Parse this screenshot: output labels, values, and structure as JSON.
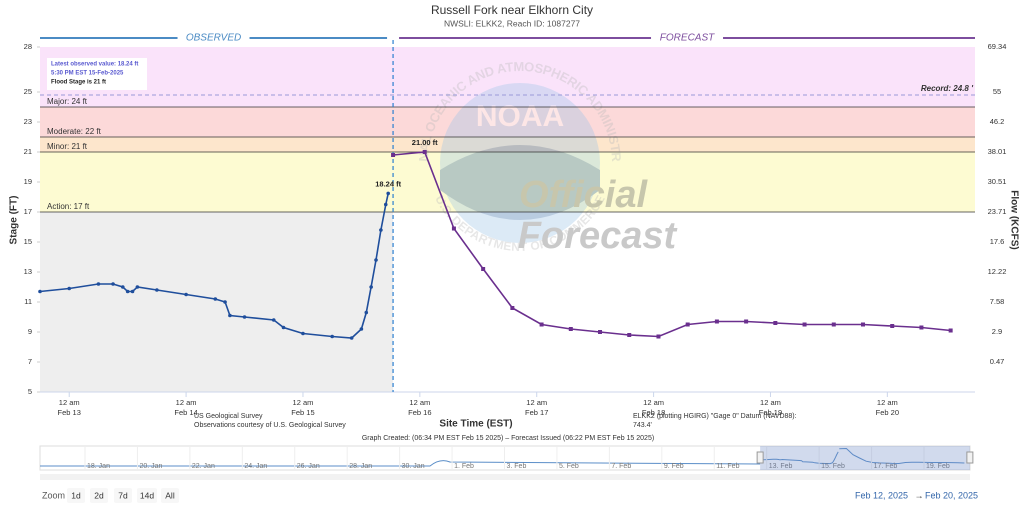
{
  "chart_data": {
    "type": "line",
    "title": "Russell Fork near Elkhorn City",
    "subtitle": "NWSLI: ELKK2, Reach ID: 1087277",
    "x_label": "Site Time (EST)",
    "y_label": "Stage (FT)",
    "y2_label": "Flow (KCFS)",
    "xlim": [
      "2025-02-12 18:00",
      "2025-02-20 18:00"
    ],
    "xticks": [
      {
        "value": "2025-02-13 00:00",
        "label": "12 am"
      },
      {
        "value": "2025-02-14 00:00",
        "label": "12 am"
      },
      {
        "value": "2025-02-15 00:00",
        "label": "12 am"
      },
      {
        "value": "2025-02-16 00:00",
        "label": "12 am"
      },
      {
        "value": "2025-02-17 00:00",
        "label": "12 am"
      },
      {
        "value": "2025-02-18 00:00",
        "label": "12 am"
      },
      {
        "value": "2025-02-19 00:00",
        "label": "12 am"
      },
      {
        "value": "2025-02-20 00:00",
        "label": "12 am"
      }
    ],
    "xtick_dates": [
      "Feb 13",
      "Feb 14",
      "Feb 15",
      "Feb 16",
      "Feb 17",
      "Feb 18",
      "Feb 19",
      "Feb 20"
    ],
    "ylim": [
      5,
      28
    ],
    "yticks": [
      5,
      7,
      9,
      11,
      13,
      15,
      17,
      19,
      21,
      23,
      25,
      28
    ],
    "y2ticks": [
      null,
      0.47,
      2.9,
      7.58,
      12.22,
      17.6,
      23.71,
      30.51,
      38.01,
      46.2,
      55,
      69.34
    ],
    "flood_categories": [
      {
        "label": "Action: 17 ft",
        "value": 17,
        "color": "#fdfbd2"
      },
      {
        "label": "Minor: 21 ft",
        "value": 21,
        "color": "#fde6cc"
      },
      {
        "label": "Moderate: 22 ft",
        "value": 22,
        "color": "#fcd9d9"
      },
      {
        "label": "Major: 24 ft",
        "value": 24,
        "color": "#fae3fa"
      }
    ],
    "record": {
      "label": "Record: 24.8 '",
      "value": 24.8
    },
    "series": [
      {
        "name": "OBSERVED",
        "color": "#1f4e9c",
        "x": [
          "2025-02-12 18:00",
          "2025-02-13 00:00",
          "2025-02-13 06:00",
          "2025-02-13 09:00",
          "2025-02-13 11:00",
          "2025-02-13 12:00",
          "2025-02-13 13:00",
          "2025-02-13 14:00",
          "2025-02-13 18:00",
          "2025-02-14 00:00",
          "2025-02-14 06:00",
          "2025-02-14 08:00",
          "2025-02-14 09:00",
          "2025-02-14 12:00",
          "2025-02-14 18:00",
          "2025-02-14 20:00",
          "2025-02-15 00:00",
          "2025-02-15 06:00",
          "2025-02-15 10:00",
          "2025-02-15 12:00",
          "2025-02-15 13:00",
          "2025-02-15 14:00",
          "2025-02-15 15:00",
          "2025-02-15 16:00",
          "2025-02-15 17:00",
          "2025-02-15 17:30"
        ],
        "values": [
          11.7,
          11.9,
          12.2,
          12.2,
          12.0,
          11.7,
          11.7,
          12.0,
          11.8,
          11.5,
          11.2,
          11.0,
          10.1,
          10.0,
          9.8,
          9.3,
          8.9,
          8.7,
          8.6,
          9.2,
          10.3,
          12.0,
          13.8,
          15.8,
          17.5,
          18.24
        ],
        "value_labels": [
          null,
          null,
          null,
          null,
          null,
          null,
          null,
          null,
          null,
          null,
          null,
          null,
          null,
          null,
          null,
          null,
          null,
          null,
          null,
          null,
          null,
          null,
          null,
          null,
          null,
          "18.24 ft"
        ]
      },
      {
        "name": "FORECAST",
        "color": "#6a2f8e",
        "x": [
          "2025-02-15 18:30",
          "2025-02-16 01:00",
          "2025-02-16 07:00",
          "2025-02-16 13:00",
          "2025-02-16 19:00",
          "2025-02-17 01:00",
          "2025-02-17 07:00",
          "2025-02-17 13:00",
          "2025-02-17 19:00",
          "2025-02-18 01:00",
          "2025-02-18 07:00",
          "2025-02-18 13:00",
          "2025-02-18 19:00",
          "2025-02-19 01:00",
          "2025-02-19 07:00",
          "2025-02-19 13:00",
          "2025-02-19 19:00",
          "2025-02-20 01:00",
          "2025-02-20 07:00",
          "2025-02-20 13:00"
        ],
        "values": [
          20.8,
          21.0,
          15.9,
          13.2,
          10.6,
          9.5,
          9.2,
          9.0,
          8.8,
          8.7,
          9.5,
          9.7,
          9.7,
          9.6,
          9.5,
          9.5,
          9.5,
          9.4,
          9.3,
          9.1
        ],
        "value_labels": [
          null,
          "21.00 ft",
          null,
          null,
          null,
          null,
          null,
          null,
          null,
          null,
          null,
          null,
          null,
          null,
          null,
          null,
          null,
          null,
          null,
          null
        ]
      }
    ],
    "info_box": [
      "Latest observed value: 18.24 ft",
      "5:30 PM EST 15-Feb-2025",
      "Flood Stage is 21 ft"
    ],
    "watermark": {
      "emblem": "NOAA",
      "ring_top": "NATIONAL OCEANIC AND ATMOSPHERIC ADMINISTRATION",
      "ring_bottom": "U.S. DEPARTMENT OF COMMERCE",
      "lines": [
        "Official",
        "Forecast"
      ]
    },
    "credits_left": [
      "US Geological Survey",
      "Observations courtesy of U.S. Geological Survey"
    ],
    "credits_right": [
      "ELKK2 (plotting HGIRG) \"Gage 0\" Datum (NAVD88):",
      "743.4'"
    ],
    "graph_created": "Graph Created: (06:34 PM EST Feb 15 2025) – Forecast Issued (06:22 PM EST Feb 15 2025)",
    "navigator_ticks": [
      {
        "value": "2025-01-18 00:00",
        "label": "18. Jan"
      },
      {
        "value": "2025-01-20 00:00",
        "label": "20. Jan"
      },
      {
        "value": "2025-01-22 00:00",
        "label": "22. Jan"
      },
      {
        "value": "2025-01-24 00:00",
        "label": "24. Jan"
      },
      {
        "value": "2025-01-26 00:00",
        "label": "26. Jan"
      },
      {
        "value": "2025-01-28 00:00",
        "label": "28. Jan"
      },
      {
        "value": "2025-01-30 00:00",
        "label": "30. Jan"
      },
      {
        "value": "2025-02-01 00:00",
        "label": "1. Feb"
      },
      {
        "value": "2025-02-03 00:00",
        "label": "3. Feb"
      },
      {
        "value": "2025-02-05 00:00",
        "label": "5. Feb"
      },
      {
        "value": "2025-02-07 00:00",
        "label": "7. Feb"
      },
      {
        "value": "2025-02-09 00:00",
        "label": "9. Feb"
      },
      {
        "value": "2025-02-11 00:00",
        "label": "11. Feb"
      },
      {
        "value": "2025-02-13 00:00",
        "label": "13. Feb"
      },
      {
        "value": "2025-02-15 00:00",
        "label": "15. Feb"
      },
      {
        "value": "2025-02-17 00:00",
        "label": "17. Feb"
      },
      {
        "value": "2025-02-19 00:00",
        "label": "19. Feb"
      }
    ],
    "zoom_label": "Zoom",
    "zoom_buttons": [
      "1d",
      "2d",
      "7d",
      "14d",
      "All"
    ],
    "range_from": "Feb 12, 2025",
    "range_separator": "→",
    "range_to": "Feb 20, 2025"
  }
}
